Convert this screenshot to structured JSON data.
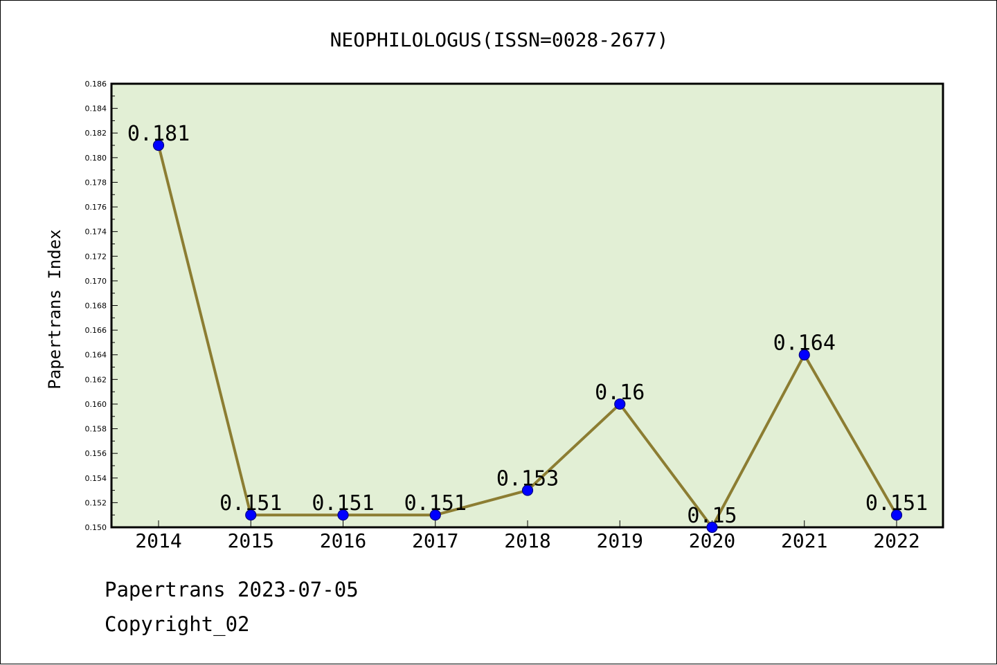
{
  "chart_data": {
    "type": "line",
    "title": "NEOPHILOLOGUS(ISSN=0028-2677)",
    "xlabel": "",
    "ylabel": "Papertrans Index",
    "categories": [
      "2014",
      "2015",
      "2016",
      "2017",
      "2018",
      "2019",
      "2020",
      "2021",
      "2022"
    ],
    "series": [
      {
        "values": [
          0.181,
          0.151,
          0.151,
          0.151,
          0.153,
          0.16,
          0.15,
          0.164,
          0.151
        ],
        "labels": [
          "0.181",
          "0.151",
          "0.151",
          "0.151",
          "0.153",
          "0.16",
          "0.15",
          "0.164",
          "0.151"
        ]
      }
    ],
    "ylim": [
      0.15,
      0.186
    ],
    "yticks": [
      "0.150",
      "0.152",
      "0.154",
      "0.156",
      "0.158",
      "0.160",
      "0.162",
      "0.164",
      "0.166",
      "0.168",
      "0.170",
      "0.172",
      "0.174",
      "0.176",
      "0.178",
      "0.180",
      "0.182",
      "0.184",
      "0.186"
    ],
    "grid": false,
    "legend": "none",
    "colors": {
      "plot_background": "#e2efd5",
      "line": "#8c7d32",
      "marker": "#0000ff",
      "marker_edge": "#000080"
    }
  },
  "footer": {
    "line1": "Papertrans 2023-07-05",
    "line2": "Copyright_02"
  }
}
